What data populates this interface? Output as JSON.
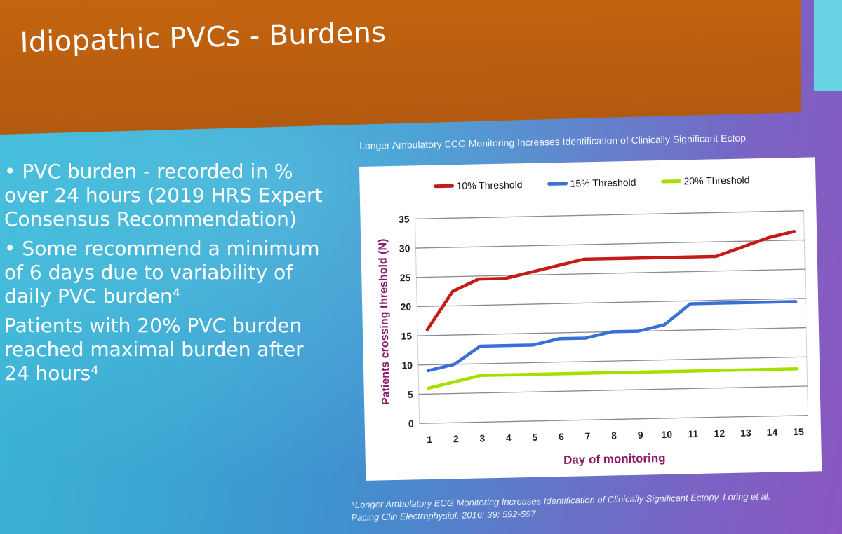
{
  "slide": {
    "title": "Idiopathic PVCs - Burdens",
    "bullets": [
      "• PVC burden - recorded in % over 24 hours (2019 HRS Expert Consensus Recommendation)",
      "• Some recommend a minimum of 6 days due to variability of daily PVC burden⁴",
      "Patients with 20% PVC burden reached maximal burden after 24 hours⁴"
    ],
    "chart_heading": "Longer Ambulatory ECG Monitoring Increases Identification of Clinically Significant Ectop",
    "footnote_line1": "⁴Longer Ambulatory ECG Monitoring Increases Identification of Clinically Significant Ectopy. Loring et al.",
    "footnote_line2": "Pacing Clin Electrophysiol. 2016; 39: 592-597"
  },
  "colors": {
    "title_bar": "#c4640f",
    "series_10": "#c41a1a",
    "series_15": "#3a6fd8",
    "series_20": "#a6e000",
    "axis_label": "#8a1a6a"
  },
  "chart_data": {
    "type": "line",
    "title": "",
    "xlabel": "Day of monitoring",
    "ylabel": "Patients crossing threshold (N)",
    "x": [
      1,
      2,
      3,
      4,
      5,
      6,
      7,
      8,
      9,
      10,
      11,
      12,
      13,
      14,
      15
    ],
    "ylim": [
      0,
      35
    ],
    "yticks": [
      0,
      5,
      10,
      15,
      20,
      25,
      30,
      35
    ],
    "grid": true,
    "legend_position": "top",
    "series": [
      {
        "name": "10% Threshold",
        "color": "#c41a1a",
        "values": [
          16,
          22.5,
          24.5,
          24.5,
          25.5,
          26.5,
          27.5,
          27.5,
          27.5,
          27.5,
          27.5,
          27.5,
          29,
          30.5,
          31.5
        ]
      },
      {
        "name": "15% Threshold",
        "color": "#3a6fd8",
        "values": [
          9,
          10,
          13,
          13,
          13,
          14,
          14,
          15,
          15,
          16,
          19.5,
          19.5,
          19.5,
          19.5,
          19.5
        ]
      },
      {
        "name": "20% Threshold",
        "color": "#a6e000",
        "values": [
          6,
          7,
          8,
          8,
          8,
          8,
          8,
          8,
          8,
          8,
          8,
          8,
          8,
          8,
          8
        ]
      }
    ]
  }
}
